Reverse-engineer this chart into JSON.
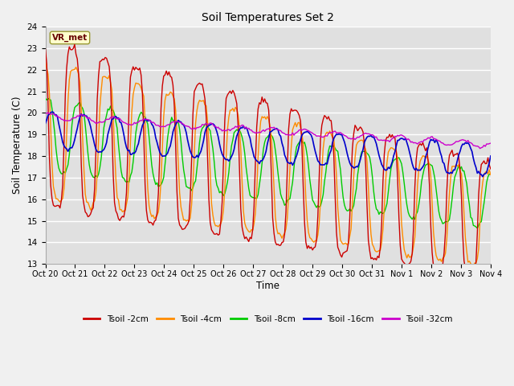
{
  "title": "Soil Temperatures Set 2",
  "xlabel": "Time",
  "ylabel": "Soil Temperature (C)",
  "ylim": [
    13.0,
    24.0
  ],
  "yticks": [
    13.0,
    14.0,
    15.0,
    16.0,
    17.0,
    18.0,
    19.0,
    20.0,
    21.0,
    22.0,
    23.0,
    24.0
  ],
  "xtick_labels": [
    "Oct 20",
    "Oct 21",
    "Oct 22",
    "Oct 23",
    "Oct 24",
    "Oct 25",
    "Oct 26",
    "Oct 27",
    "Oct 28",
    "Oct 29",
    "Oct 30",
    "Oct 31",
    "Nov 1",
    "Nov 2",
    "Nov 3",
    "Nov 4"
  ],
  "colors": {
    "Tsoil -2cm": "#cc0000",
    "Tsoil -4cm": "#ff8c00",
    "Tsoil -8cm": "#00cc00",
    "Tsoil -16cm": "#0000cc",
    "Tsoil -32cm": "#cc00cc"
  },
  "legend_labels": [
    "Tsoil -2cm",
    "Tsoil -4cm",
    "Tsoil -8cm",
    "Tsoil -16cm",
    "Tsoil -32cm"
  ],
  "vr_met_label": "VR_met",
  "background_color": "#f0f0f0",
  "plot_bg_color": "#e0e0e0",
  "n_points": 336,
  "figsize": [
    6.4,
    4.8
  ],
  "dpi": 100
}
